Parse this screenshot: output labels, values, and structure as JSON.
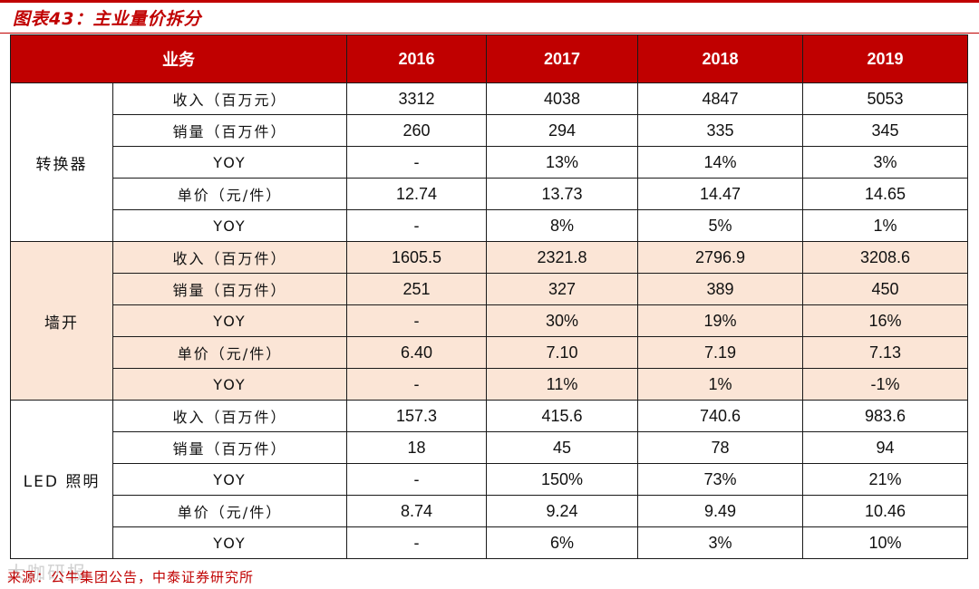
{
  "figure_title": "图表43：主业量价拆分",
  "header": {
    "business_label": "业务",
    "years": [
      "2016",
      "2017",
      "2018",
      "2019"
    ]
  },
  "groups": [
    {
      "name": "转换器",
      "shaded": false,
      "rows": [
        {
          "metric": "收入（百万元）",
          "values": [
            "3312",
            "4038",
            "4847",
            "5053"
          ]
        },
        {
          "metric": "销量（百万件）",
          "values": [
            "260",
            "294",
            "335",
            "345"
          ]
        },
        {
          "metric": "YOY",
          "values": [
            "-",
            "13%",
            "14%",
            "3%"
          ]
        },
        {
          "metric": "单价（元/件）",
          "values": [
            "12.74",
            "13.73",
            "14.47",
            "14.65"
          ]
        },
        {
          "metric": "YOY",
          "values": [
            "-",
            "8%",
            "5%",
            "1%"
          ]
        }
      ]
    },
    {
      "name": "墙开",
      "shaded": true,
      "rows": [
        {
          "metric": "收入（百万件）",
          "values": [
            "1605.5",
            "2321.8",
            "2796.9",
            "3208.6"
          ]
        },
        {
          "metric": "销量（百万件）",
          "values": [
            "251",
            "327",
            "389",
            "450"
          ]
        },
        {
          "metric": "YOY",
          "values": [
            "-",
            "30%",
            "19%",
            "16%"
          ]
        },
        {
          "metric": "单价（元/件）",
          "values": [
            "6.40",
            "7.10",
            "7.19",
            "7.13"
          ]
        },
        {
          "metric": "YOY",
          "values": [
            "-",
            "11%",
            "1%",
            "-1%"
          ]
        }
      ]
    },
    {
      "name": "LED 照明",
      "shaded": false,
      "rows": [
        {
          "metric": "收入（百万件）",
          "values": [
            "157.3",
            "415.6",
            "740.6",
            "983.6"
          ]
        },
        {
          "metric": "销量（百万件）",
          "values": [
            "18",
            "45",
            "78",
            "94"
          ]
        },
        {
          "metric": "YOY",
          "values": [
            "-",
            "150%",
            "73%",
            "21%"
          ]
        },
        {
          "metric": "单价（元/件）",
          "values": [
            "8.74",
            "9.24",
            "9.49",
            "10.46"
          ]
        },
        {
          "metric": "YOY",
          "values": [
            "-",
            "6%",
            "3%",
            "10%"
          ]
        }
      ]
    }
  ],
  "source": "来源：公牛集团公告，中泰证券研究所",
  "watermark": "大咖研报",
  "colors": {
    "accent": "#c00000",
    "shade": "#fbe5d6"
  }
}
